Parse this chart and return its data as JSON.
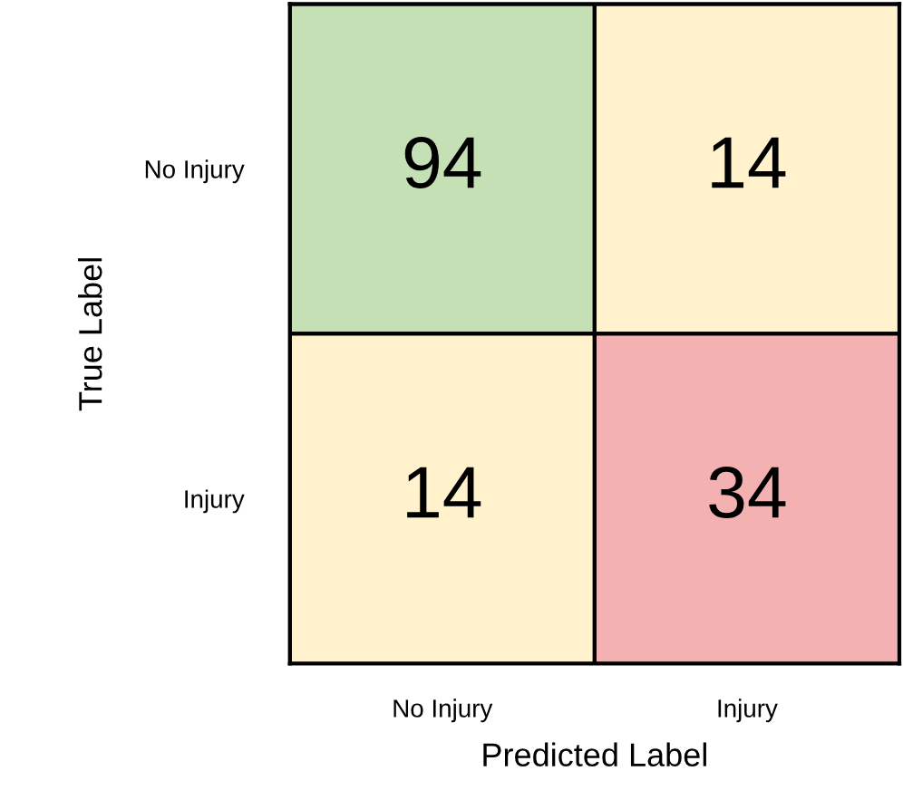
{
  "chart_data": {
    "type": "heatmap",
    "xlabel": "Predicted Label",
    "ylabel": "True Label",
    "categories": [
      "No Injury",
      "Injury"
    ],
    "y_categories": [
      "No Injury",
      "Injury"
    ],
    "cells": [
      [
        94,
        14
      ],
      [
        14,
        34
      ]
    ],
    "colors": [
      [
        "#c5e0b4",
        "#fff2cc"
      ],
      [
        "#fff2cc",
        "#f4b1b1"
      ]
    ],
    "data_labels": true
  }
}
